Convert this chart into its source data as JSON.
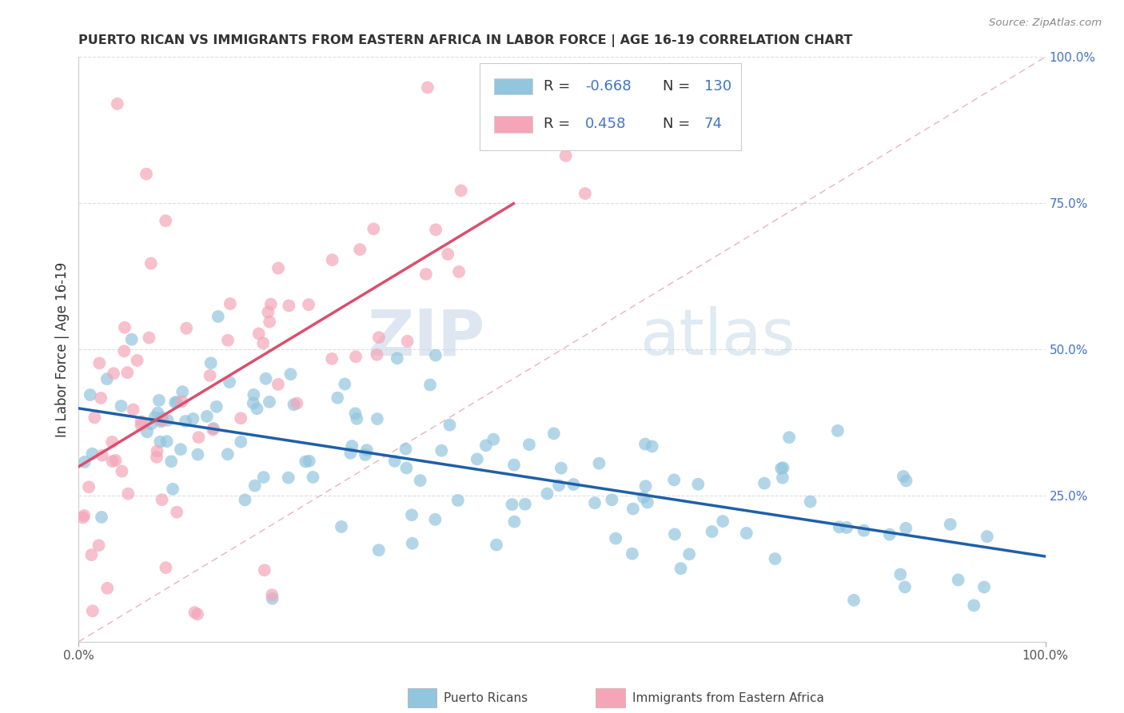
{
  "title": "PUERTO RICAN VS IMMIGRANTS FROM EASTERN AFRICA IN LABOR FORCE | AGE 16-19 CORRELATION CHART",
  "source": "Source: ZipAtlas.com",
  "ylabel": "In Labor Force | Age 16-19",
  "legend_blue_r": "-0.668",
  "legend_blue_n": "130",
  "legend_pink_r": "0.458",
  "legend_pink_n": "74",
  "blue_color": "#92c5de",
  "pink_color": "#f4a6b8",
  "blue_line_color": "#1f5fa6",
  "pink_line_color": "#d94f6e",
  "diagonal_color": "#e8b4bc",
  "watermark_zip": "ZIP",
  "watermark_atlas": "atlas",
  "seed": 7,
  "xlim": [
    0.0,
    1.0
  ],
  "ylim": [
    0.0,
    1.0
  ]
}
